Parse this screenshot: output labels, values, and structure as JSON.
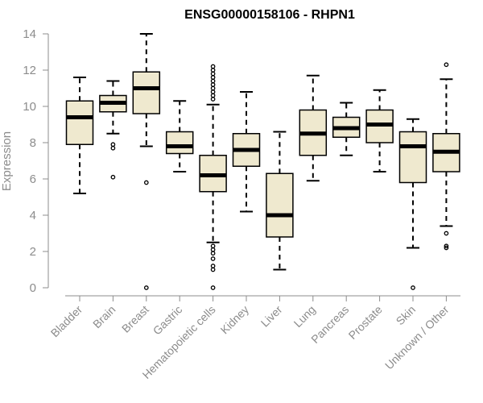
{
  "chart_data": {
    "type": "box",
    "title": "ENSG00000158106 - RHPN1",
    "xlabel": "",
    "ylabel": "Expression",
    "ylim": [
      0,
      14
    ],
    "yticks": [
      0,
      2,
      4,
      6,
      8,
      10,
      12,
      14
    ],
    "grid": false,
    "colors": {
      "box_fill": "#efe9cf",
      "box_stroke": "#000000",
      "axis": "#8c8c8c"
    },
    "categories": [
      "Bladder",
      "Brain",
      "Breast",
      "Gastric",
      "Hematopoietic cells",
      "Kidney",
      "Liver",
      "Lung",
      "Pancreas",
      "Prostate",
      "Skin",
      "Unknown / Other"
    ],
    "boxes": [
      {
        "category": "Bladder",
        "whisker_low": 5.2,
        "q1": 7.9,
        "median": 9.4,
        "q3": 10.3,
        "whisker_high": 11.6,
        "outliers": []
      },
      {
        "category": "Brain",
        "whisker_low": 8.5,
        "q1": 9.7,
        "median": 10.2,
        "q3": 10.6,
        "whisker_high": 11.4,
        "outliers": [
          6.1,
          7.7,
          7.9
        ]
      },
      {
        "category": "Breast",
        "whisker_low": 7.8,
        "q1": 9.6,
        "median": 11.0,
        "q3": 11.9,
        "whisker_high": 14.0,
        "outliers": [
          5.8,
          0.0
        ]
      },
      {
        "category": "Gastric",
        "whisker_low": 6.4,
        "q1": 7.4,
        "median": 7.8,
        "q3": 8.6,
        "whisker_high": 10.3,
        "outliers": []
      },
      {
        "category": "Hematopoietic cells",
        "whisker_low": 2.5,
        "q1": 5.3,
        "median": 6.2,
        "q3": 7.3,
        "whisker_high": 10.1,
        "outliers": [
          12.2,
          12.0,
          11.8,
          11.6,
          11.4,
          11.2,
          11.0,
          10.8,
          10.6,
          10.4,
          2.3,
          2.1,
          1.9,
          1.6,
          1.2,
          1.0,
          0.0
        ]
      },
      {
        "category": "Kidney",
        "whisker_low": 4.2,
        "q1": 6.7,
        "median": 7.6,
        "q3": 8.5,
        "whisker_high": 10.8,
        "outliers": []
      },
      {
        "category": "Liver",
        "whisker_low": 1.0,
        "q1": 2.8,
        "median": 4.0,
        "q3": 6.3,
        "whisker_high": 8.6,
        "outliers": []
      },
      {
        "category": "Lung",
        "whisker_low": 5.9,
        "q1": 7.3,
        "median": 8.5,
        "q3": 9.8,
        "whisker_high": 11.7,
        "outliers": []
      },
      {
        "category": "Pancreas",
        "whisker_low": 7.3,
        "q1": 8.3,
        "median": 8.8,
        "q3": 9.4,
        "whisker_high": 10.2,
        "outliers": []
      },
      {
        "category": "Prostate",
        "whisker_low": 6.4,
        "q1": 8.0,
        "median": 9.0,
        "q3": 9.8,
        "whisker_high": 10.9,
        "outliers": []
      },
      {
        "category": "Skin",
        "whisker_low": 2.2,
        "q1": 5.8,
        "median": 7.8,
        "q3": 8.6,
        "whisker_high": 9.3,
        "outliers": [
          0.0
        ]
      },
      {
        "category": "Unknown / Other",
        "whisker_low": 3.4,
        "q1": 6.4,
        "median": 7.5,
        "q3": 8.5,
        "whisker_high": 11.5,
        "outliers": [
          12.3,
          3.0,
          2.3,
          2.2
        ]
      }
    ]
  }
}
